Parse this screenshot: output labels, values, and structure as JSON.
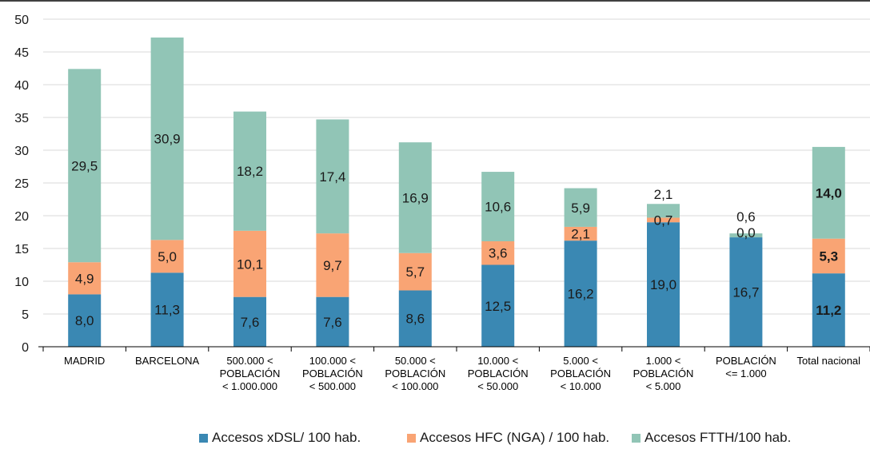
{
  "chart_data": {
    "type": "bar",
    "stacked": true,
    "title": "",
    "xlabel": "",
    "ylabel": "",
    "ylim": [
      0,
      50
    ],
    "yticks": [
      0,
      5,
      10,
      15,
      20,
      25,
      30,
      35,
      40,
      45,
      50
    ],
    "grid": true,
    "legend_position": "bottom",
    "categories": [
      [
        "MADRID"
      ],
      [
        "BARCELONA"
      ],
      [
        "500.000 <",
        "POBLACIÓN",
        "< 1.000.000"
      ],
      [
        "100.000 <",
        "POBLACIÓN",
        "< 500.000"
      ],
      [
        "50.000 <",
        "POBLACIÓN",
        "< 100.000"
      ],
      [
        "10.000 <",
        "POBLACIÓN",
        "< 50.000"
      ],
      [
        "5.000 <",
        "POBLACIÓN",
        "< 10.000"
      ],
      [
        "1.000 <",
        "POBLACIÓN",
        "< 5.000"
      ],
      [
        "POBLACIÓN",
        "<= 1.000"
      ],
      [
        "Total nacional"
      ]
    ],
    "series": [
      {
        "name": "Accesos xDSL/ 100 hab.",
        "color": "#3a88b3",
        "values": [
          8.0,
          11.3,
          7.6,
          7.6,
          8.6,
          12.5,
          16.2,
          19.0,
          16.7,
          11.2
        ],
        "labels": [
          "8,0",
          "11,3",
          "7,6",
          "7,6",
          "8,6",
          "12,5",
          "16,2",
          "19,0",
          "16,7",
          "11,2"
        ]
      },
      {
        "name": "Accesos HFC (NGA) / 100 hab.",
        "color": "#f9a474",
        "values": [
          4.9,
          5.0,
          10.1,
          9.7,
          5.7,
          3.6,
          2.1,
          0.7,
          0.0,
          5.3
        ],
        "labels": [
          "4,9",
          "5,0",
          "10,1",
          "9,7",
          "5,7",
          "3,6",
          "2,1",
          "0,7",
          "0,0",
          "5,3"
        ]
      },
      {
        "name": "Accesos FTTH/100 hab.",
        "color": "#91c5b6",
        "values": [
          29.5,
          30.9,
          18.2,
          17.4,
          16.9,
          10.6,
          5.9,
          2.1,
          0.6,
          14.0
        ],
        "labels": [
          "29,5",
          "30,9",
          "18,2",
          "17,4",
          "16,9",
          "10,6",
          "5,9",
          "2,1",
          "0,6",
          "14,0"
        ]
      }
    ],
    "bold_categories": [
      9
    ]
  }
}
